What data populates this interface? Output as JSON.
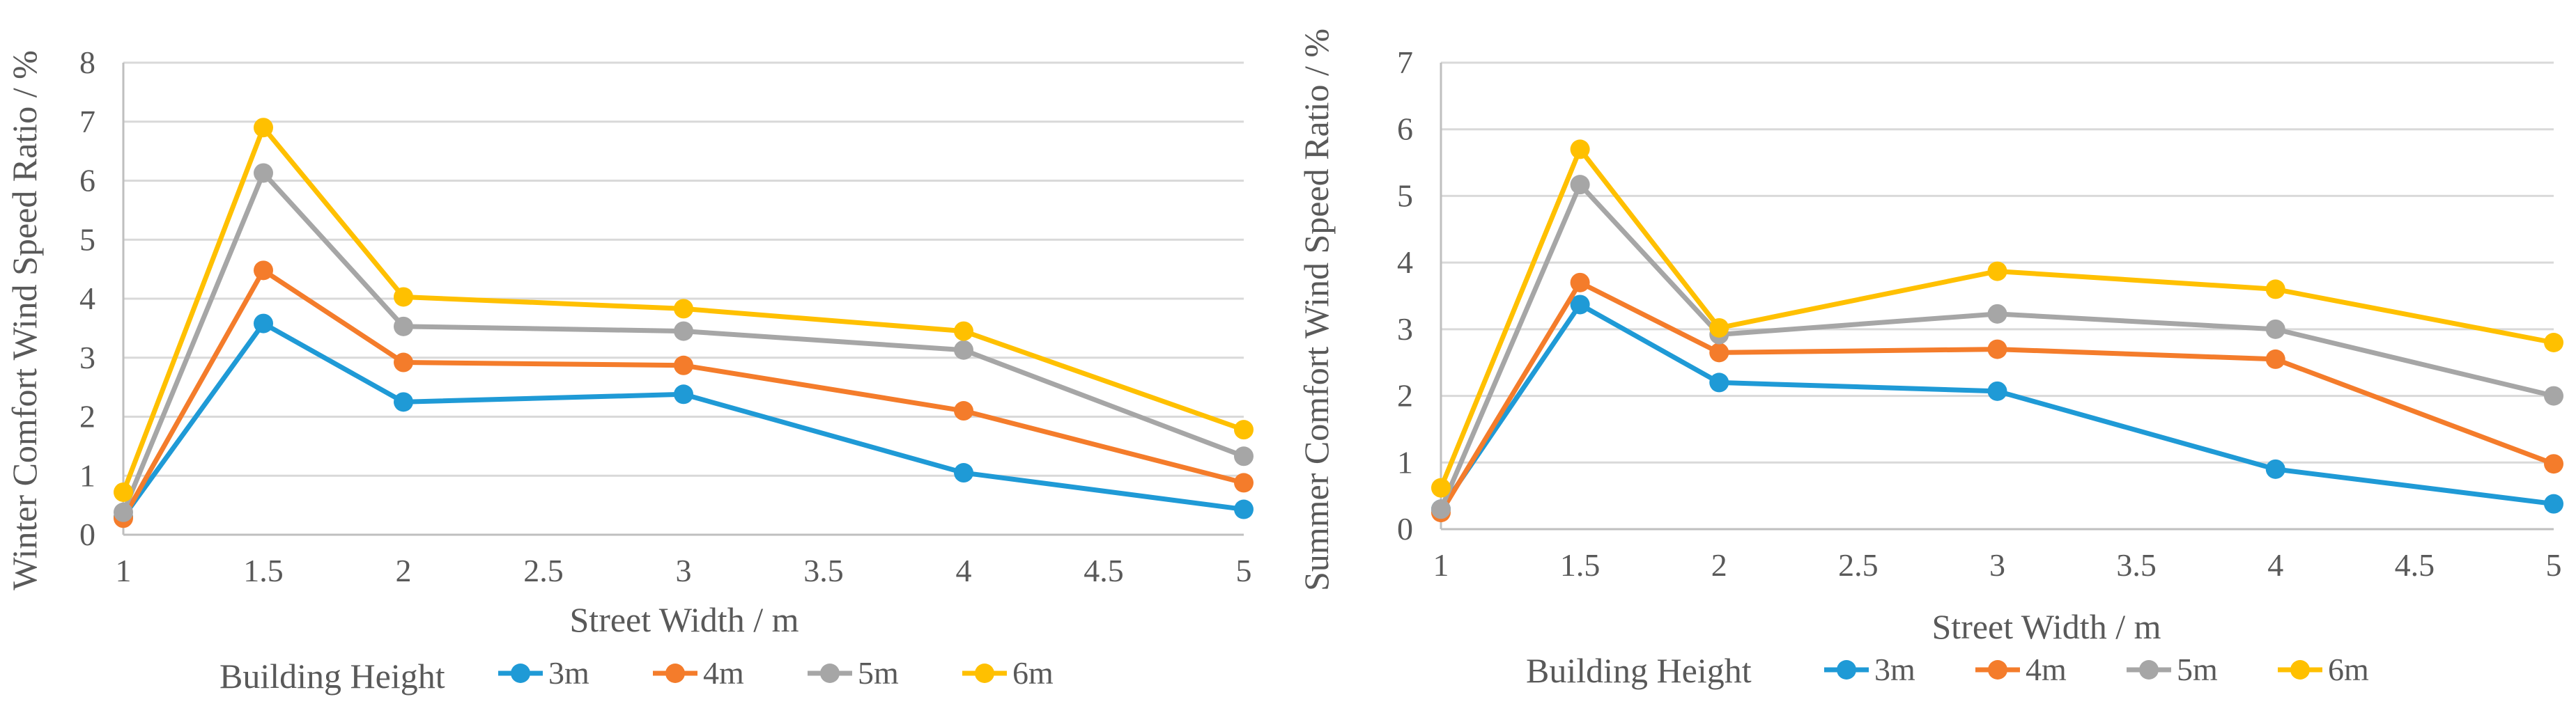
{
  "chart_data": [
    {
      "type": "line",
      "title": "",
      "xlabel": "Street Width / m",
      "ylabel": "Winter Comfort Wind Speed Ratio / %",
      "xlim": [
        1,
        5
      ],
      "ylim": [
        0,
        8
      ],
      "xticks": [
        "1",
        "1.5",
        "2",
        "2.5",
        "3",
        "3.5",
        "4",
        "4.5",
        "5"
      ],
      "yticks": [
        "0",
        "1",
        "2",
        "3",
        "4",
        "5",
        "6",
        "7",
        "8"
      ],
      "x": [
        1,
        1.5,
        2,
        3,
        4,
        5
      ],
      "legend_title": "Building Height",
      "series": [
        {
          "name": "3m",
          "color": "#1f9ad6",
          "values": [
            0.3,
            3.58,
            2.25,
            2.38,
            1.05,
            0.43
          ]
        },
        {
          "name": "4m",
          "color": "#f47c2b",
          "values": [
            0.28,
            4.48,
            2.92,
            2.87,
            2.1,
            0.88
          ]
        },
        {
          "name": "5m",
          "color": "#a6a6a6",
          "values": [
            0.38,
            6.13,
            3.53,
            3.45,
            3.13,
            1.33
          ]
        },
        {
          "name": "6m",
          "color": "#ffc000",
          "values": [
            0.72,
            6.9,
            4.03,
            3.83,
            3.45,
            1.78
          ]
        }
      ]
    },
    {
      "type": "line",
      "title": "",
      "xlabel": "Street Width / m",
      "ylabel": "Summer Comfort Wind Speed Ratio / %",
      "xlim": [
        1,
        5
      ],
      "ylim": [
        0,
        7
      ],
      "xticks": [
        "1",
        "1.5",
        "2",
        "2.5",
        "3",
        "3.5",
        "4",
        "4.5",
        "5"
      ],
      "yticks": [
        "0",
        "1",
        "2",
        "3",
        "4",
        "5",
        "6",
        "7"
      ],
      "x": [
        1,
        1.5,
        2,
        3,
        4,
        5
      ],
      "legend_title": "Building Height",
      "series": [
        {
          "name": "3m",
          "color": "#1f9ad6",
          "values": [
            0.3,
            3.37,
            2.2,
            2.07,
            0.9,
            0.38
          ]
        },
        {
          "name": "4m",
          "color": "#f47c2b",
          "values": [
            0.25,
            3.7,
            2.65,
            2.7,
            2.55,
            0.98
          ]
        },
        {
          "name": "5m",
          "color": "#a6a6a6",
          "values": [
            0.3,
            5.17,
            2.92,
            3.23,
            3.0,
            2.0
          ]
        },
        {
          "name": "6m",
          "color": "#ffc000",
          "values": [
            0.62,
            5.7,
            3.02,
            3.87,
            3.6,
            2.8
          ]
        }
      ]
    }
  ]
}
